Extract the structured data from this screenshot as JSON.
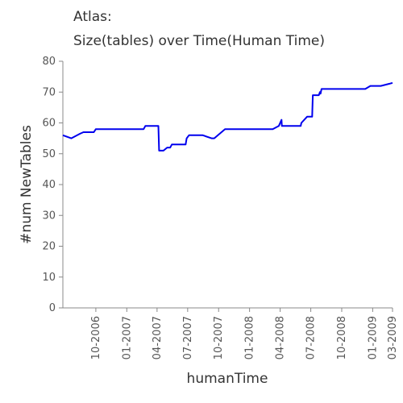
{
  "chart_data": {
    "type": "line",
    "title": "Atlas:",
    "subtitle": "Size(tables) over Time(Human Time)",
    "xlabel": "humanTime",
    "ylabel": "#num NewTables",
    "ylim": [
      0,
      80
    ],
    "yticks": [
      0,
      10,
      20,
      30,
      40,
      50,
      60,
      70,
      80
    ],
    "xlim": [
      "2006-06-25",
      "2009-03-01"
    ],
    "xticks": [
      {
        "date": "2006-10-01",
        "label": "10-2006"
      },
      {
        "date": "2007-01-01",
        "label": "01-2007"
      },
      {
        "date": "2007-04-01",
        "label": "04-2007"
      },
      {
        "date": "2007-07-01",
        "label": "07-2007"
      },
      {
        "date": "2007-10-01",
        "label": "10-2007"
      },
      {
        "date": "2008-01-01",
        "label": "01-2008"
      },
      {
        "date": "2008-04-01",
        "label": "04-2008"
      },
      {
        "date": "2008-07-01",
        "label": "07-2008"
      },
      {
        "date": "2008-10-01",
        "label": "10-2008"
      },
      {
        "date": "2009-01-01",
        "label": "01-2009"
      },
      {
        "date": "2009-03-01",
        "label": "03-2009"
      }
    ],
    "grid": false,
    "series": [
      {
        "color": "#0000ee",
        "points": [
          [
            "2006-06-25",
            56
          ],
          [
            "2006-07-20",
            55
          ],
          [
            "2006-08-15",
            56.5
          ],
          [
            "2006-08-25",
            57
          ],
          [
            "2006-09-25",
            57
          ],
          [
            "2006-10-01",
            58
          ],
          [
            "2007-02-20",
            58
          ],
          [
            "2007-02-25",
            59
          ],
          [
            "2007-04-05",
            59
          ],
          [
            "2007-04-07",
            51
          ],
          [
            "2007-04-20",
            51
          ],
          [
            "2007-05-01",
            52
          ],
          [
            "2007-05-10",
            52
          ],
          [
            "2007-05-15",
            53
          ],
          [
            "2007-06-25",
            53
          ],
          [
            "2007-06-28",
            55
          ],
          [
            "2007-07-05",
            56
          ],
          [
            "2007-08-15",
            56
          ],
          [
            "2007-09-10",
            55
          ],
          [
            "2007-09-18",
            55
          ],
          [
            "2007-10-20",
            58
          ],
          [
            "2008-03-10",
            58
          ],
          [
            "2008-03-28",
            59
          ],
          [
            "2008-04-05",
            61
          ],
          [
            "2008-04-06",
            59
          ],
          [
            "2008-06-01",
            59
          ],
          [
            "2008-06-03",
            60
          ],
          [
            "2008-06-20",
            62
          ],
          [
            "2008-07-05",
            62
          ],
          [
            "2008-07-07",
            69
          ],
          [
            "2008-07-25",
            69
          ],
          [
            "2008-07-28",
            70
          ],
          [
            "2008-07-30",
            69.5
          ],
          [
            "2008-08-02",
            71
          ],
          [
            "2008-12-10",
            71
          ],
          [
            "2008-12-25",
            72
          ],
          [
            "2009-01-25",
            72
          ],
          [
            "2009-02-20",
            72.7
          ],
          [
            "2009-03-01",
            73
          ]
        ]
      }
    ]
  }
}
